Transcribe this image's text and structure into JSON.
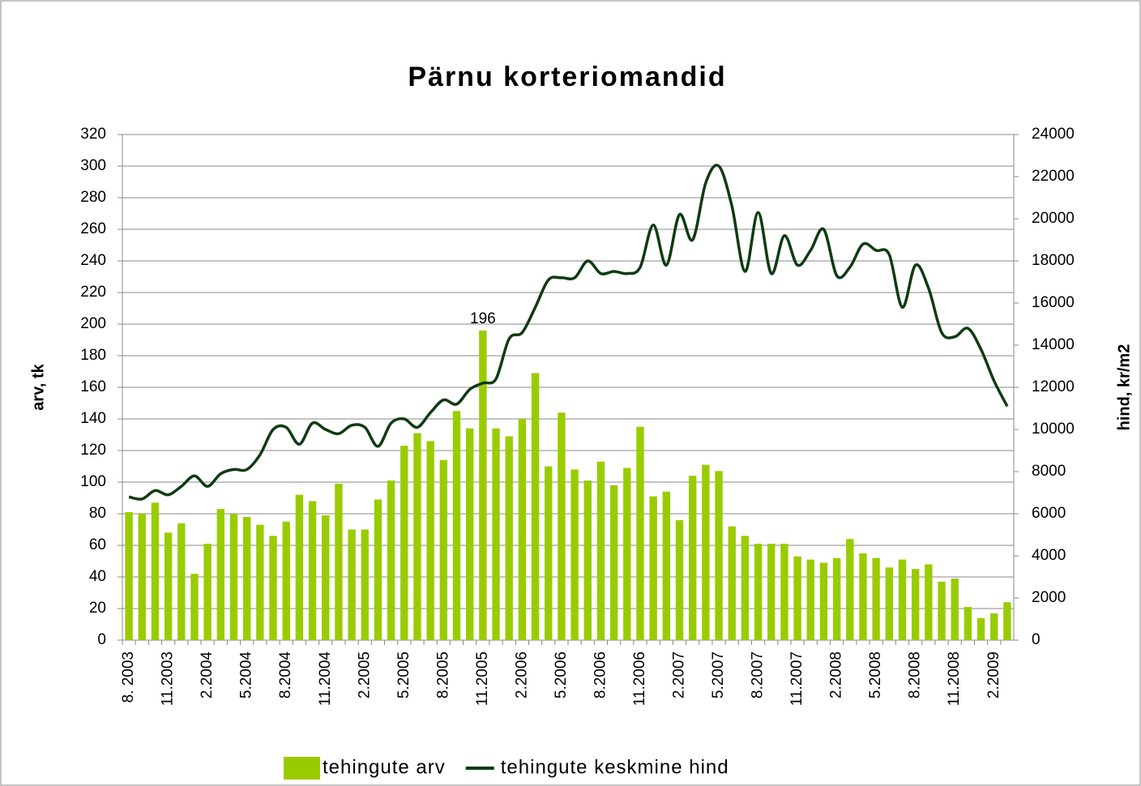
{
  "chart_data": {
    "type": "bar_line",
    "title": "Pärnu korteriomandid",
    "ylabel": "arv, tk",
    "y2label": "hind, kr/m2",
    "categories": [
      "8. 2003",
      null,
      null,
      "11.2003",
      null,
      null,
      "2.2004",
      null,
      null,
      "5.2004",
      null,
      null,
      "8.2004",
      null,
      null,
      "11.2004",
      null,
      null,
      "2.2005",
      null,
      null,
      "5.2005",
      null,
      null,
      "8.2005",
      null,
      null,
      "11.2005",
      null,
      null,
      "2.2006",
      null,
      null,
      "5.2006",
      null,
      null,
      "8.2006",
      null,
      null,
      "11.2006",
      null,
      null,
      "2.2007",
      null,
      null,
      "5.2007",
      null,
      null,
      "8.2007",
      null,
      null,
      "11.2007",
      null,
      null,
      "2.2008",
      null,
      null,
      "5.2008",
      null,
      null,
      "8.2008",
      null,
      null,
      "11.2008",
      null,
      null,
      "2.2009",
      null
    ],
    "series": [
      {
        "name": "tehingute arv",
        "type": "bar",
        "color": "#99cc00",
        "values": [
          81,
          80,
          87,
          68,
          74,
          42,
          61,
          83,
          80,
          78,
          73,
          66,
          75,
          92,
          88,
          79,
          99,
          70,
          70,
          89,
          101,
          123,
          131,
          126,
          114,
          145,
          134,
          196,
          134,
          129,
          140,
          169,
          110,
          144,
          108,
          101,
          113,
          98,
          109,
          135,
          91,
          94,
          76,
          104,
          111,
          107,
          72,
          66,
          61,
          61,
          61,
          53,
          51,
          49,
          52,
          64,
          55,
          52,
          46,
          51,
          45,
          48,
          37,
          39,
          21,
          14,
          17,
          24
        ],
        "value_labels": [
          null,
          null,
          null,
          null,
          null,
          null,
          null,
          null,
          null,
          null,
          null,
          null,
          null,
          null,
          null,
          null,
          null,
          null,
          null,
          null,
          null,
          null,
          null,
          null,
          null,
          null,
          null,
          "196",
          null,
          null,
          null,
          null,
          null,
          null,
          null,
          null,
          null,
          null,
          null,
          null,
          null,
          null,
          null,
          null,
          null,
          null,
          null,
          null,
          null,
          null,
          null,
          null,
          null,
          null,
          null,
          null,
          null,
          null,
          null,
          null,
          null,
          null,
          null,
          null,
          null,
          null,
          null,
          null
        ]
      },
      {
        "name": "tehingute keskmine hind",
        "type": "line",
        "axis": "y2",
        "color": "#0f3b12",
        "values": [
          6800,
          6700,
          7100,
          6900,
          7300,
          7800,
          7300,
          7900,
          8100,
          8100,
          8800,
          10000,
          10100,
          9300,
          10300,
          10000,
          9800,
          10200,
          10100,
          9200,
          10300,
          10500,
          10100,
          10800,
          11400,
          11200,
          11900,
          12200,
          12400,
          14300,
          14600,
          15800,
          17100,
          17200,
          17200,
          18000,
          17400,
          17500,
          17400,
          17700,
          19700,
          17800,
          20200,
          19000,
          21700,
          22500,
          20600,
          17500,
          20300,
          17400,
          19200,
          17800,
          18500,
          19500,
          17300,
          17700,
          18800,
          18500,
          18300,
          15800,
          17800,
          16700,
          14600,
          14400,
          14800,
          13800,
          12300,
          11100
        ]
      }
    ],
    "ylim": [
      0,
      320
    ],
    "yticks": [
      0,
      20,
      40,
      60,
      80,
      100,
      120,
      140,
      160,
      180,
      200,
      220,
      240,
      260,
      280,
      300,
      320
    ],
    "y2lim": [
      0,
      24000
    ],
    "y2ticks": [
      0,
      2000,
      4000,
      6000,
      8000,
      10000,
      12000,
      14000,
      16000,
      18000,
      20000,
      22000,
      24000
    ],
    "grid": true,
    "legend": "bottom"
  }
}
